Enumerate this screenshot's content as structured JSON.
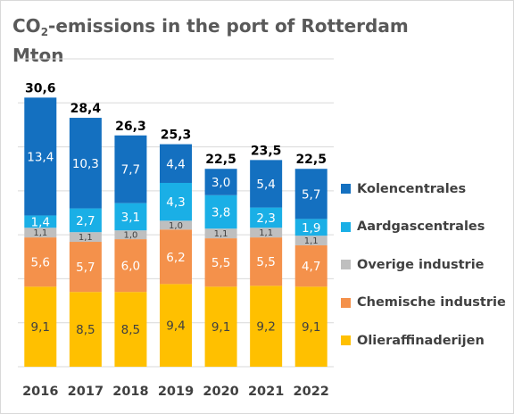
{
  "chart_data": {
    "type": "bar",
    "stacked": true,
    "title": {
      "pre": "CO",
      "sub": "2",
      "post": "-emissions  in the port of Rotterdam",
      "line2": "Mton"
    },
    "categories": [
      "2016",
      "2017",
      "2018",
      "2019",
      "2020",
      "2021",
      "2022"
    ],
    "series": [
      {
        "name": "Olieraffinaderijen",
        "color": "#FFC000",
        "values": [
          9.1,
          8.5,
          8.5,
          9.4,
          9.1,
          9.2,
          9.1
        ],
        "labels": [
          "9,1",
          "8,5",
          "8,5",
          "9,4",
          "9,1",
          "9,2",
          "9,1"
        ]
      },
      {
        "name": "Chemische industrie",
        "color": "#F4914B",
        "values": [
          5.6,
          5.7,
          6.0,
          6.2,
          5.5,
          5.5,
          4.7
        ],
        "labels": [
          "5,6",
          "5,7",
          "6,0",
          "6,2",
          "5,5",
          "5,5",
          "4,7"
        ]
      },
      {
        "name": "Overige industrie",
        "color": "#BFBFBF",
        "values": [
          1.1,
          1.1,
          1.0,
          1.0,
          1.1,
          1.1,
          1.1
        ],
        "labels": [
          "1,1",
          "1,1",
          "1,0",
          "1,0",
          "1,1",
          "1,1",
          "1,1"
        ]
      },
      {
        "name": "Aardgascentrales",
        "color": "#1AAFE6",
        "values": [
          1.4,
          2.7,
          3.1,
          4.3,
          3.8,
          2.3,
          1.9
        ],
        "labels": [
          "1,4",
          "2,7",
          "3,1",
          "4,3",
          "3,8",
          "2,3",
          "1,9"
        ]
      },
      {
        "name": "Kolencentrales",
        "color": "#1470C0",
        "values": [
          13.4,
          10.3,
          7.7,
          4.4,
          3.0,
          5.4,
          5.7
        ],
        "labels": [
          "13,4",
          "10,3",
          "7,7",
          "4,4",
          "3,0",
          "5,4",
          "5,7"
        ]
      }
    ],
    "totals": [
      "30,6",
      "28,4",
      "26,3",
      "25,3",
      "22,5",
      "23,5",
      "22,5"
    ],
    "ylim": [
      0,
      35
    ],
    "grid": true,
    "legend": "right"
  }
}
